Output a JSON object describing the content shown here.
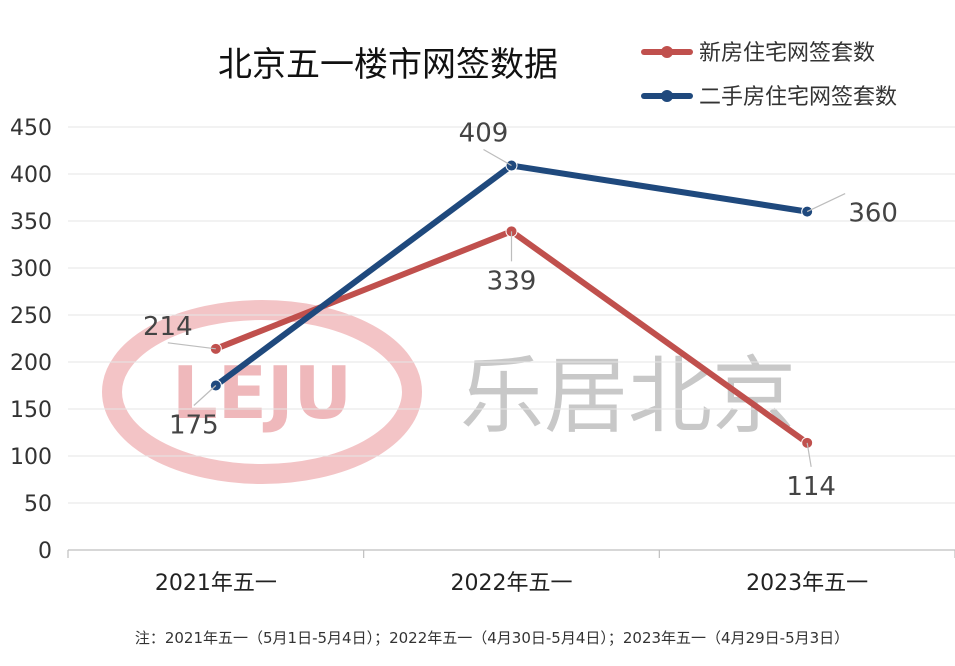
{
  "chart_data": {
    "type": "line",
    "title": "北京五一楼市网签数据",
    "categories": [
      "2021年五一",
      "2022年五一",
      "2023年五一"
    ],
    "series": [
      {
        "name": "新房住宅网签套数",
        "values": [
          214,
          339,
          114
        ],
        "color": "#c0504d"
      },
      {
        "name": "二手房住宅网签套数",
        "values": [
          175,
          409,
          360
        ],
        "color": "#1f497d"
      }
    ],
    "ylim": [
      0,
      450
    ],
    "yticks": [
      "0",
      "50",
      "100",
      "150",
      "200",
      "250",
      "300",
      "350",
      "400",
      "450"
    ],
    "grid": true,
    "legend": "top-right",
    "note": "注：2021年五一（5月1日-5月4日）；2022年五一（4月30日-5月4日）；2023年五一（4月29日-5月3日）"
  },
  "watermark": {
    "logo_text": "LEJU",
    "text": "乐居北京",
    "logo_color": "#efb8bb",
    "text_color": "#c8c8c8"
  }
}
